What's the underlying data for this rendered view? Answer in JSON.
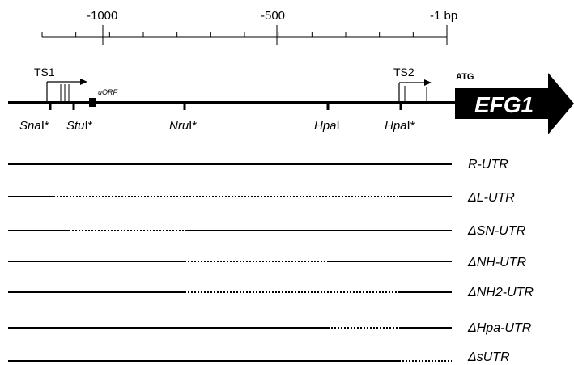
{
  "scale": {
    "labels": [
      "-1000",
      "-500",
      "-1 bp"
    ]
  },
  "promoter": {
    "ts1": "TS1",
    "ts2": "TS2",
    "uorf": "uORF",
    "atg": "ATG",
    "gene": "EFG1"
  },
  "sites": [
    {
      "name": "Sna",
      "suffix": "I*"
    },
    {
      "name": "Stu",
      "suffix": "I*"
    },
    {
      "name": "Nru",
      "suffix": "I*"
    },
    {
      "name": "Hpa",
      "suffix": "I"
    },
    {
      "name": "Hpa",
      "suffix": "I*"
    }
  ],
  "constructs": [
    {
      "label": "R-UTR"
    },
    {
      "label": "ΔL-UTR"
    },
    {
      "label": "ΔSN-UTR"
    },
    {
      "label": "ΔNH-UTR"
    },
    {
      "label": "ΔNH2-UTR"
    },
    {
      "label": "ΔHpa-UTR"
    },
    {
      "label": "ΔsUTR"
    }
  ]
}
